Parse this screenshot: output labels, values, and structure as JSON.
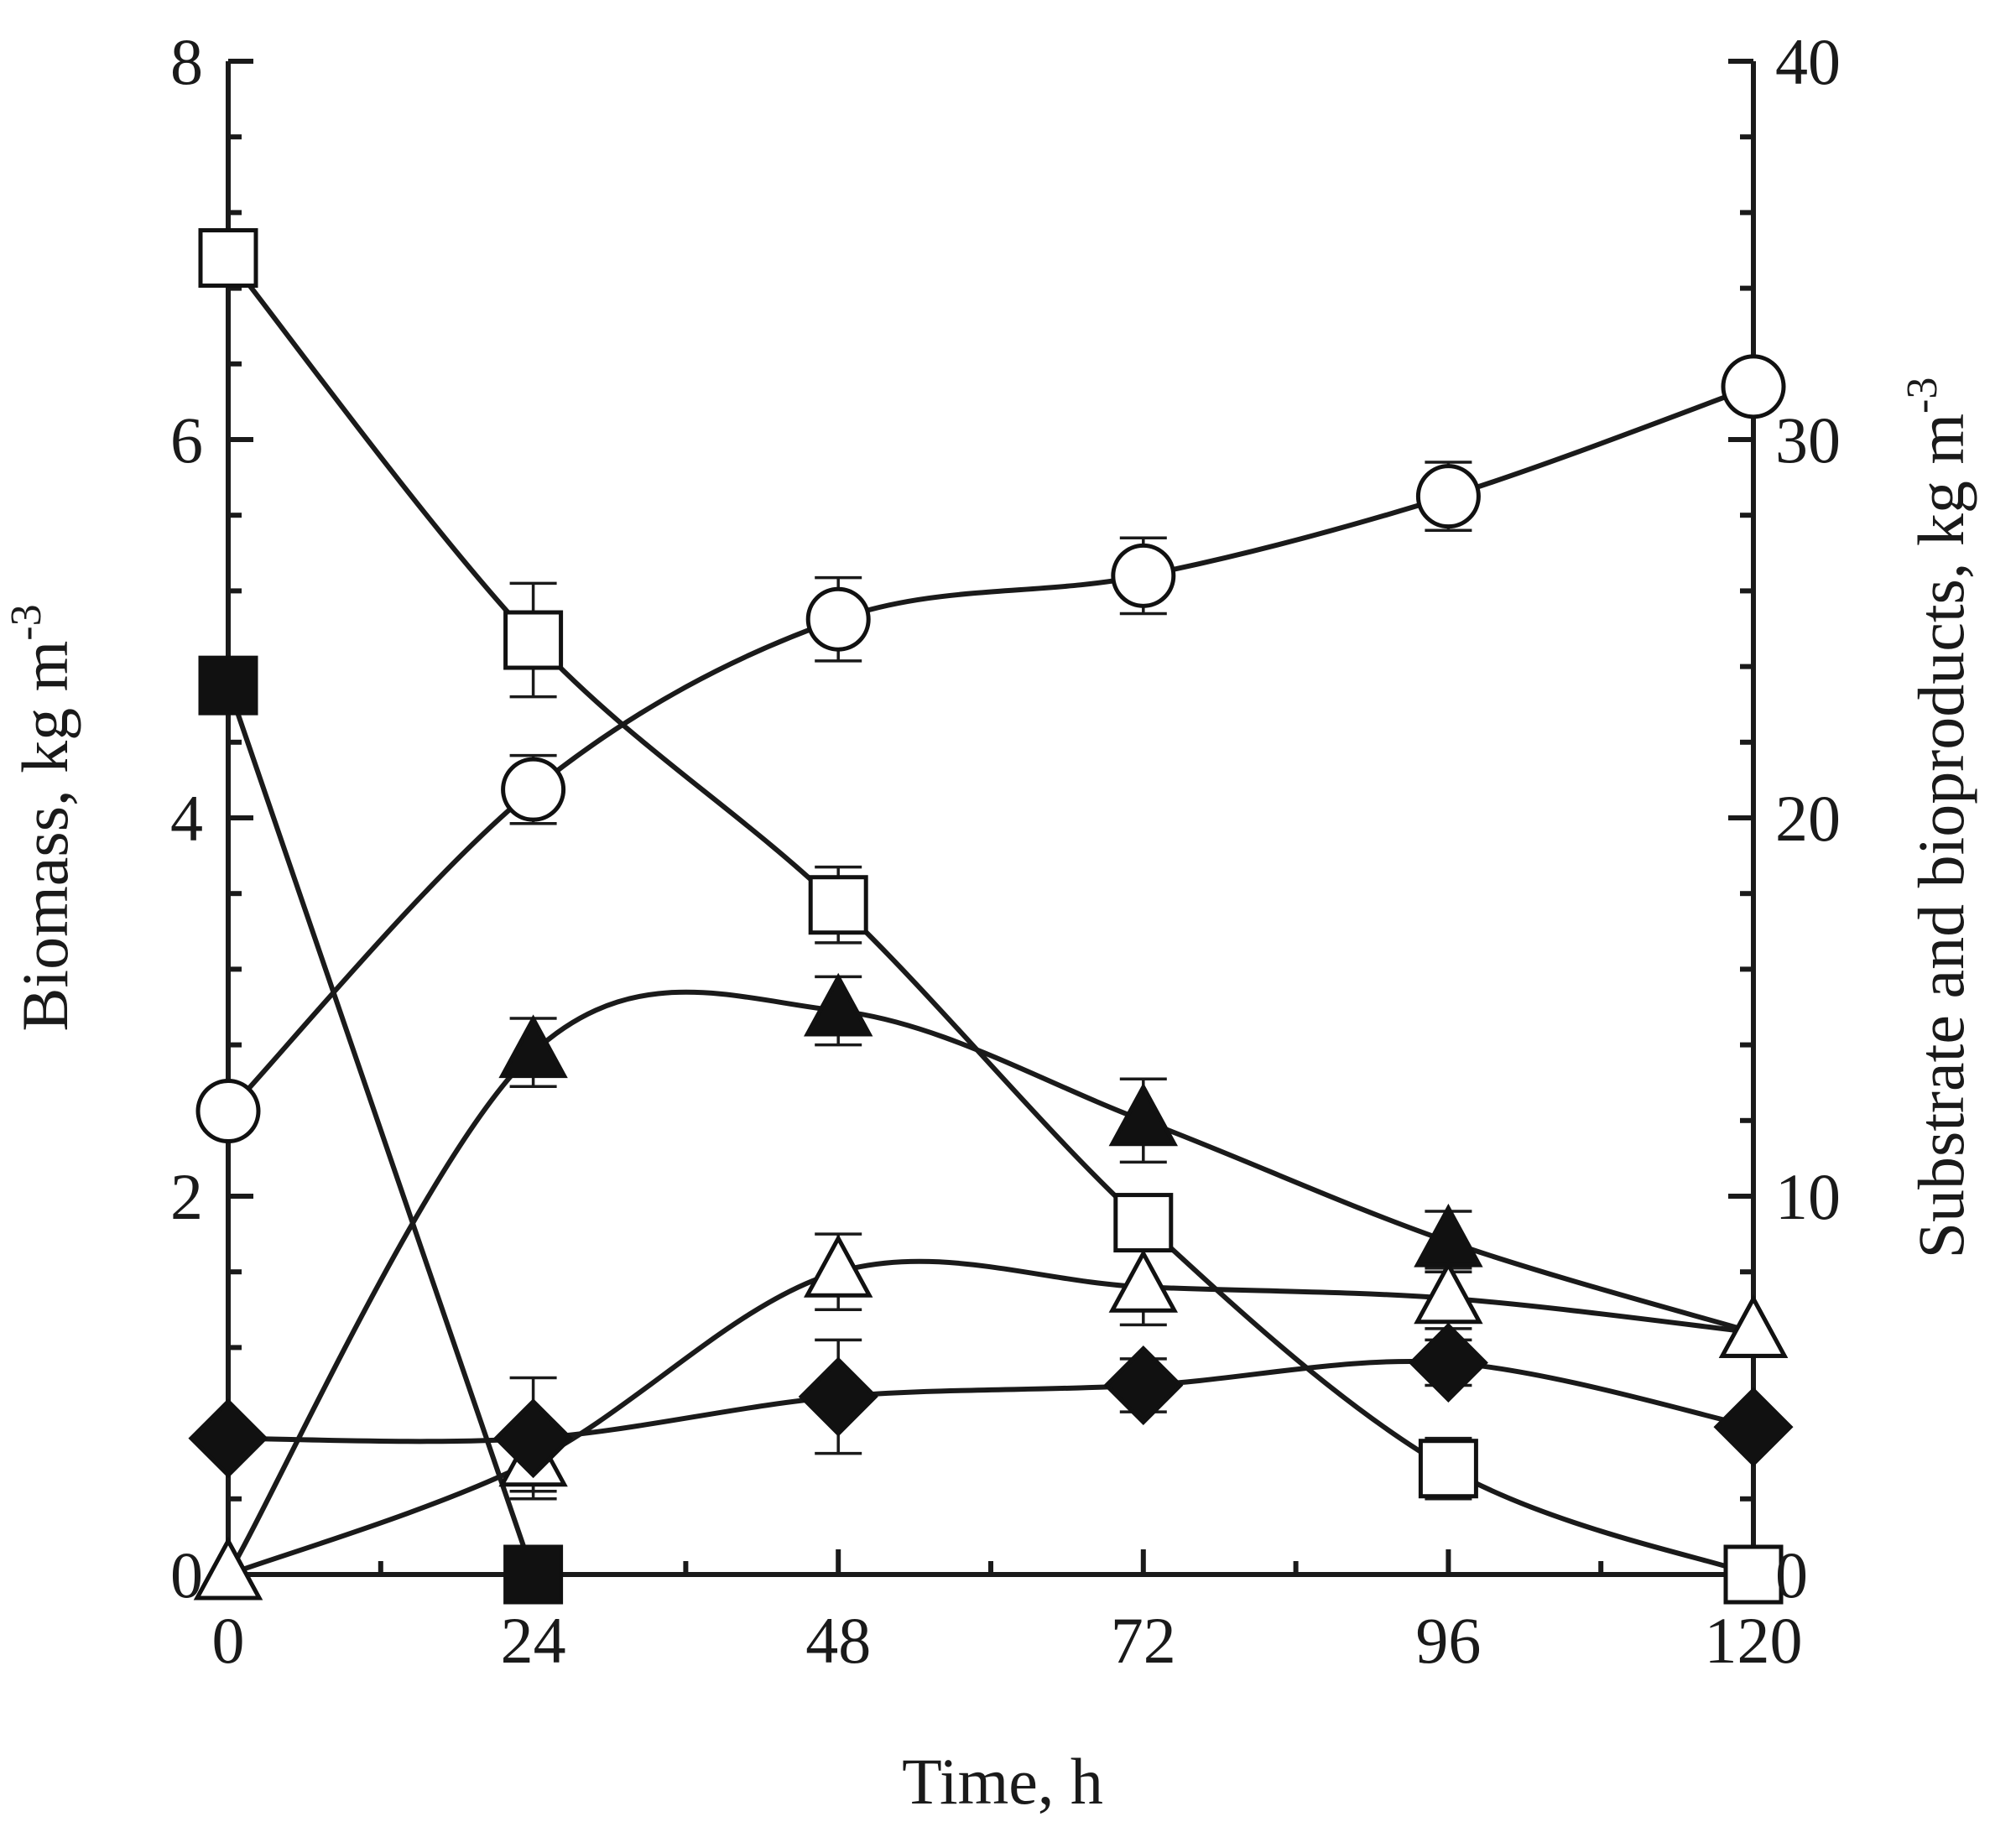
{
  "chart_data": {
    "type": "line",
    "x": [
      0,
      24,
      48,
      72,
      96,
      120
    ],
    "xlabel": "Time, h",
    "ylabel_left": "Biomass, kg m",
    "ylabel_left_exp": "-3",
    "ylabel_right": "Substrate and bioproducts, kg m",
    "ylabel_right_exp": "-3",
    "xlim": [
      0,
      120
    ],
    "ylim_left": [
      0,
      8
    ],
    "ylim_right": [
      0,
      40
    ],
    "xticks": [
      "0",
      "24",
      "48",
      "72",
      "96",
      "120"
    ],
    "yticks_left": [
      "0",
      "2",
      "4",
      "6",
      "8"
    ],
    "yticks_right": [
      "0",
      "10",
      "20",
      "30",
      "40"
    ],
    "series": [
      {
        "name": "Biomass",
        "marker": "circle-open",
        "axis": "left",
        "values": [
          2.45,
          4.15,
          5.05,
          5.28,
          5.7,
          6.28
        ],
        "errors": [
          null,
          0.18,
          0.22,
          0.2,
          0.18,
          null
        ]
      },
      {
        "name": "Substrate (open square)",
        "marker": "square-open",
        "axis": "right",
        "values": [
          34.8,
          24.7,
          17.7,
          9.3,
          2.8,
          0
        ],
        "errors": [
          null,
          1.5,
          1.0,
          0.7,
          0.8,
          null
        ]
      },
      {
        "name": "Substrate (filled square)",
        "marker": "square-filled",
        "axis": "right",
        "values": [
          23.5,
          0
        ],
        "x": [
          0,
          24
        ],
        "errors": [
          null,
          0.5
        ]
      },
      {
        "name": "Bioproduct (filled triangle)",
        "marker": "triangle-filled",
        "axis": "right",
        "values": [
          0,
          13.8,
          14.9,
          12.0,
          8.8,
          6.4
        ],
        "errors": [
          null,
          0.9,
          0.9,
          1.1,
          0.8,
          null
        ]
      },
      {
        "name": "Bioproduct (open triangle)",
        "marker": "triangle-open",
        "axis": "right",
        "values": [
          0,
          3.0,
          8.0,
          7.6,
          7.3,
          6.4
        ],
        "errors": [
          null,
          0.8,
          1.0,
          1.0,
          0.8,
          null
        ]
      },
      {
        "name": "Bioproduct (filled diamond)",
        "marker": "diamond-filled",
        "axis": "right",
        "values": [
          3.6,
          3.6,
          4.7,
          5.0,
          5.6,
          3.9
        ],
        "errors": [
          null,
          1.6,
          1.5,
          0.7,
          0.6,
          null
        ]
      }
    ]
  }
}
